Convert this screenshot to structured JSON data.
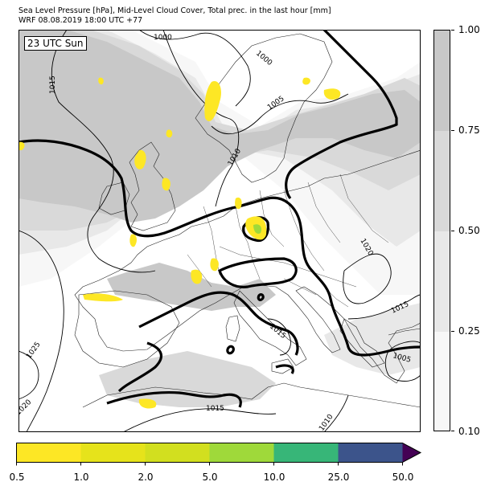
{
  "title": {
    "line1": "Sea Level Pressure [hPa], Mid-Level Cloud Cover, Total prec. in the last hour [mm]",
    "line2": "WRF 08.08.2019 18:00 UTC +77"
  },
  "map": {
    "time_label": "23 UTC Sun",
    "isobar_labels": [
      "1000",
      "1000",
      "1005",
      "1010",
      "1015",
      "1015",
      "1015",
      "1015",
      "1020",
      "1020",
      "1025",
      "1010",
      "1005"
    ]
  },
  "cloud_cover_legend": {
    "colors": [
      "#f7f7f7",
      "#e8e8e8",
      "#d9d9d9",
      "#c8c8c8"
    ],
    "tick_labels": [
      "0.10",
      "0.25",
      "0.50",
      "0.75",
      "1.00"
    ]
  },
  "precip_legend": {
    "colors": [
      "#fde725",
      "#e6e31b",
      "#d2df1f",
      "#9fd93a",
      "#37b678",
      "#3c548b",
      "#440154"
    ],
    "tick_labels": [
      "0.5",
      "1.0",
      "2.0",
      "5.0",
      "10.0",
      "25.0",
      "50.0"
    ]
  }
}
